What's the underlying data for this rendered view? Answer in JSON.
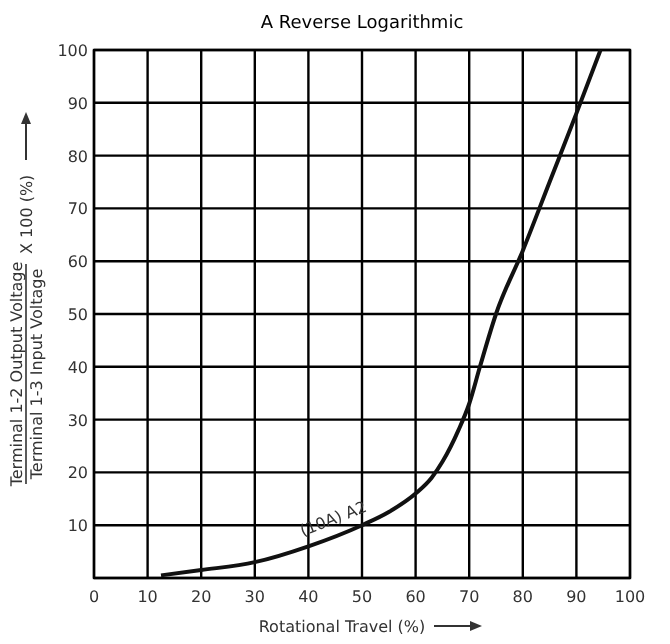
{
  "chart_data": {
    "type": "line",
    "title": "A Reverse Logarithmic",
    "xlabel": "Rotational Travel (%)",
    "ylabel": "Terminal 1-2 Output Voltage\nTerminal 1-3 Input Voltage\nX 100 (%)",
    "xlim": [
      0,
      100
    ],
    "ylim": [
      0,
      100
    ],
    "xticks": [
      0,
      10,
      20,
      30,
      40,
      50,
      60,
      70,
      80,
      90,
      100
    ],
    "yticks": [
      {
        "value": 0,
        "label": null
      },
      10,
      20,
      30,
      40,
      50,
      60,
      70,
      80,
      90,
      100
    ],
    "grid": true,
    "series": [
      {
        "name": "(10A) A2",
        "color": "#111111",
        "x": [
          12.5,
          20,
          30,
          40,
          50,
          55,
          60,
          63,
          65,
          68,
          70,
          72,
          75,
          80,
          85,
          90,
          94.5
        ],
        "values": [
          0.5,
          1.5,
          3,
          6,
          10,
          12.5,
          16,
          19,
          22,
          28,
          33,
          40,
          50,
          62,
          75,
          88,
          100
        ]
      }
    ]
  }
}
